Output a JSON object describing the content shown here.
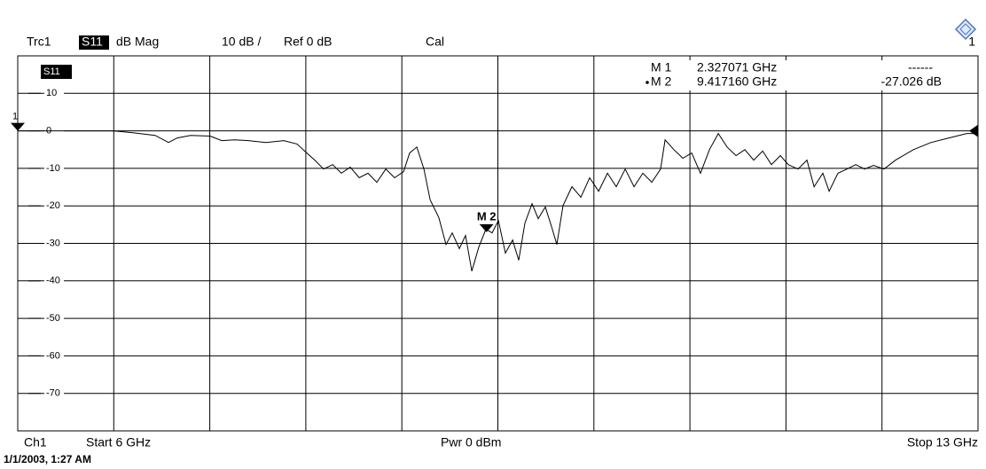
{
  "chart_data": {
    "type": "line",
    "trace_info": [
      "Trc1",
      "S11",
      "dB Mag",
      "10 dB /",
      "Ref 0 dB",
      "Cal"
    ],
    "channel_number": "1",
    "trace_label": "S11",
    "marker_table": [
      [
        "M 1",
        "2.327071 GHz",
        "------"
      ],
      [
        "M 2",
        "9.417160 GHz",
        "-27.026 dB"
      ]
    ],
    "footer": [
      "Ch1",
      "Start 6 GHz",
      "Pwr 0 dBm",
      "Stop 13 GHz"
    ],
    "timestamp": "1/1/2003, 1:27 AM",
    "xlim": [
      6,
      13
    ],
    "ylim": [
      -80,
      20
    ],
    "yticks": [
      10,
      0,
      -10,
      -20,
      -30,
      -40,
      -50,
      -60,
      -70
    ],
    "grid": true,
    "color": "#000000",
    "ref_marker": {
      "label": "1",
      "value": 0
    },
    "marker": {
      "label": "M 2",
      "x": 9.41716,
      "y": -27.026
    },
    "x": [
      6.0,
      6.388,
      6.698,
      6.84,
      7.002,
      7.099,
      7.163,
      7.26,
      7.403,
      7.487,
      7.584,
      7.681,
      7.81,
      7.939,
      8.036,
      8.107,
      8.165,
      8.23,
      8.295,
      8.359,
      8.424,
      8.489,
      8.553,
      8.618,
      8.683,
      8.747,
      8.812,
      8.857,
      8.909,
      8.961,
      9.006,
      9.07,
      9.122,
      9.167,
      9.219,
      9.264,
      9.31,
      9.361,
      9.413,
      9.458,
      9.504,
      9.555,
      9.607,
      9.652,
      9.697,
      9.749,
      9.794,
      9.846,
      9.891,
      9.93,
      9.975,
      10.04,
      10.105,
      10.169,
      10.234,
      10.299,
      10.363,
      10.428,
      10.493,
      10.557,
      10.622,
      10.686,
      10.719,
      10.783,
      10.848,
      10.913,
      10.977,
      11.042,
      11.107,
      11.171,
      11.236,
      11.3,
      11.365,
      11.43,
      11.494,
      11.559,
      11.617,
      11.688,
      11.753,
      11.805,
      11.869,
      11.915,
      11.979,
      12.044,
      12.109,
      12.173,
      12.238,
      12.315,
      12.399,
      12.529,
      12.658,
      12.788,
      12.917,
      13.0
    ],
    "values": [
      0,
      0,
      0,
      -0.5,
      -1.2,
      -3.1,
      -1.9,
      -1.2,
      -1.4,
      -2.6,
      -2.4,
      -2.6,
      -3.1,
      -2.6,
      -3.5,
      -5.9,
      -7.8,
      -10.2,
      -9.0,
      -11.3,
      -9.7,
      -12.5,
      -11.3,
      -13.7,
      -10.2,
      -12.5,
      -10.9,
      -5.9,
      -4.3,
      -10.2,
      -18.4,
      -23.2,
      -30.3,
      -27.2,
      -31.4,
      -27.9,
      -37.4,
      -31.0,
      -26.2,
      -27.2,
      -23.9,
      -32.6,
      -29.1,
      -34.5,
      -24.6,
      -19.4,
      -23.4,
      -20.3,
      -25.5,
      -30.3,
      -19.9,
      -14.9,
      -17.7,
      -12.5,
      -16.1,
      -11.3,
      -14.9,
      -10.2,
      -14.9,
      -11.3,
      -13.7,
      -10.2,
      -2.4,
      -5.0,
      -7.3,
      -5.9,
      -11.3,
      -5.0,
      -0.7,
      -4.3,
      -6.6,
      -5.0,
      -7.8,
      -5.4,
      -9.0,
      -6.6,
      -9.0,
      -10.2,
      -7.8,
      -14.9,
      -11.3,
      -16.1,
      -11.3,
      -10.2,
      -9.0,
      -10.2,
      -9.2,
      -10.2,
      -7.8,
      -5.0,
      -3.1,
      -1.9,
      -0.7,
      -0.7
    ]
  }
}
